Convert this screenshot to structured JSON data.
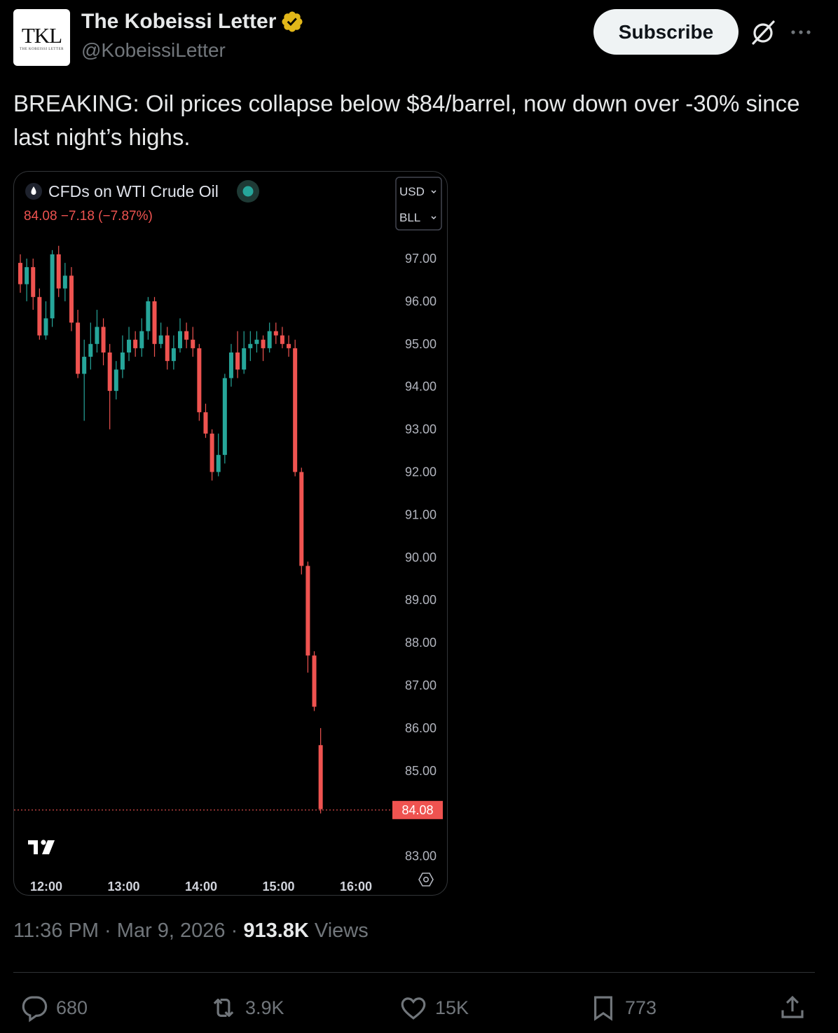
{
  "author": {
    "avatar_text": "TKL",
    "avatar_subtext": "THE KOBEISSI LETTER",
    "display_name": "The Kobeissi Letter",
    "handle": "@KobeissiLetter",
    "verified_color": "#e2b719"
  },
  "header": {
    "subscribe_label": "Subscribe"
  },
  "tweet": {
    "text": "BREAKING: Oil prices collapse below $84/barrel, now down over -30% since last night’s highs."
  },
  "chart_data": {
    "type": "candlestick",
    "title": "CFDs on WTI Crude Oil",
    "quote": "84.08  −7.18 (−7.87%)",
    "currency_label": "USD",
    "unit_label": "BLL",
    "last_price": 84.08,
    "last_price_label": "84.08",
    "y_ticks": [
      "97.00",
      "96.00",
      "95.00",
      "94.00",
      "93.00",
      "92.00",
      "91.00",
      "90.00",
      "89.00",
      "88.00",
      "87.00",
      "86.00",
      "85.00",
      "83.00"
    ],
    "x_ticks": [
      "12:00",
      "13:00",
      "14:00",
      "15:00",
      "16:00"
    ],
    "ylim": [
      82.5,
      97.6
    ],
    "up_color": "#26a69a",
    "down_color": "#ef5350",
    "candles": [
      [
        96.9,
        96.4,
        97.1,
        96.2
      ],
      [
        96.4,
        96.8,
        97.0,
        96.0
      ],
      [
        96.8,
        96.1,
        97.0,
        95.8
      ],
      [
        96.1,
        95.2,
        96.3,
        95.1
      ],
      [
        95.2,
        95.6,
        96.0,
        95.1
      ],
      [
        95.6,
        97.1,
        97.2,
        95.4
      ],
      [
        97.1,
        96.3,
        97.3,
        96.1
      ],
      [
        96.3,
        96.6,
        96.9,
        96.0
      ],
      [
        96.6,
        95.5,
        96.8,
        95.3
      ],
      [
        95.5,
        94.3,
        95.8,
        94.2
      ],
      [
        94.3,
        94.7,
        95.1,
        93.2
      ],
      [
        94.7,
        95.0,
        95.5,
        94.4
      ],
      [
        95.0,
        95.4,
        95.8,
        94.8
      ],
      [
        95.4,
        94.8,
        95.6,
        94.5
      ],
      [
        94.8,
        93.9,
        95.0,
        93.0
      ],
      [
        93.9,
        94.4,
        94.6,
        93.7
      ],
      [
        94.4,
        94.8,
        95.2,
        94.2
      ],
      [
        94.8,
        95.1,
        95.4,
        94.6
      ],
      [
        95.1,
        94.9,
        95.3,
        94.7
      ],
      [
        94.9,
        95.3,
        95.6,
        94.7
      ],
      [
        95.3,
        96.0,
        96.1,
        95.1
      ],
      [
        96.0,
        95.0,
        96.1,
        94.7
      ],
      [
        95.0,
        95.2,
        95.5,
        94.9
      ],
      [
        95.2,
        94.6,
        95.4,
        94.4
      ],
      [
        94.6,
        94.9,
        95.2,
        94.4
      ],
      [
        94.9,
        95.3,
        95.6,
        94.8
      ],
      [
        95.3,
        95.1,
        95.5,
        94.9
      ],
      [
        95.1,
        94.9,
        95.4,
        94.7
      ],
      [
        94.9,
        93.4,
        95.0,
        93.2
      ],
      [
        93.4,
        92.9,
        93.6,
        92.8
      ],
      [
        92.9,
        92.0,
        93.0,
        91.8
      ],
      [
        92.0,
        92.4,
        92.9,
        91.9
      ],
      [
        92.4,
        94.2,
        94.3,
        92.2
      ],
      [
        94.2,
        94.8,
        95.0,
        94.0
      ],
      [
        94.8,
        94.4,
        95.3,
        94.2
      ],
      [
        94.4,
        94.9,
        95.3,
        94.3
      ],
      [
        94.9,
        95.0,
        95.3,
        94.6
      ],
      [
        95.0,
        95.1,
        95.3,
        94.8
      ],
      [
        95.1,
        94.9,
        95.2,
        94.6
      ],
      [
        94.9,
        95.3,
        95.5,
        94.8
      ],
      [
        95.3,
        95.2,
        95.5,
        95.0
      ],
      [
        95.2,
        95.0,
        95.4,
        94.9
      ],
      [
        95.0,
        94.9,
        95.2,
        94.7
      ],
      [
        94.9,
        92.0,
        95.1,
        91.9
      ],
      [
        92.0,
        89.8,
        92.1,
        89.6
      ],
      [
        89.8,
        87.7,
        89.9,
        87.3
      ],
      [
        87.7,
        86.5,
        87.8,
        86.4
      ],
      [
        85.6,
        84.1,
        86.0,
        84.0
      ]
    ]
  },
  "meta": {
    "time": "11:36 PM",
    "separator": "·",
    "date": "Mar 9, 2026",
    "views_count": "913.8K",
    "views_label": "Views"
  },
  "actions": {
    "replies": "680",
    "reposts": "3.9K",
    "likes": "15K",
    "bookmarks": "773"
  }
}
